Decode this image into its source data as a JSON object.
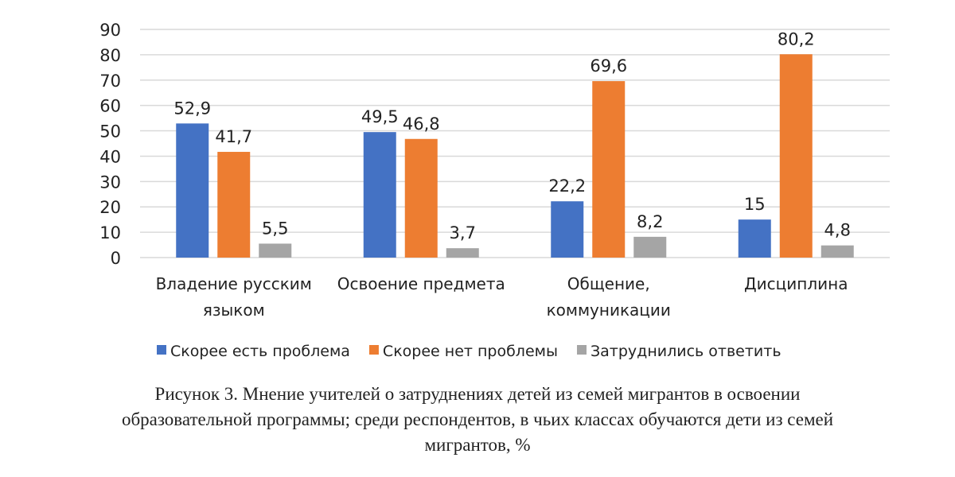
{
  "chart_data": {
    "type": "bar",
    "categories": [
      [
        "Владение русским",
        "языком"
      ],
      [
        "Освоение предмета"
      ],
      [
        "Общение,",
        "коммуникации"
      ],
      [
        "Дисциплина"
      ]
    ],
    "series": [
      {
        "name": "Скорее есть проблема",
        "values": [
          52.9,
          49.5,
          22.2,
          15
        ],
        "labels": [
          "52,9",
          "49,5",
          "22,2",
          "15"
        ],
        "color": "#4472C4"
      },
      {
        "name": "Скорее нет проблемы",
        "values": [
          41.7,
          46.8,
          69.6,
          80.2
        ],
        "labels": [
          "41,7",
          "46,8",
          "69,6",
          "80,2"
        ],
        "color": "#ED7D31"
      },
      {
        "name": "Затруднились ответить",
        "values": [
          5.5,
          3.7,
          8.2,
          4.8
        ],
        "labels": [
          "5,5",
          "3,7",
          "8,2",
          "4,8"
        ],
        "color": "#A5A5A5"
      }
    ],
    "ylim": [
      0,
      90
    ],
    "yticks": [
      "0",
      "10",
      "20",
      "30",
      "40",
      "50",
      "60",
      "70",
      "80",
      "90"
    ],
    "grid": true,
    "legend": "bottom",
    "xlabel": "",
    "ylabel": ""
  },
  "caption": {
    "lines": [
      "Рисунок 3. Мнение учителей о затруднениях детей из семей мигрантов в освоении",
      "образовательной программы; среди респондентов, в чьих классах обучаются дети из семей",
      "мигрантов, %"
    ]
  }
}
